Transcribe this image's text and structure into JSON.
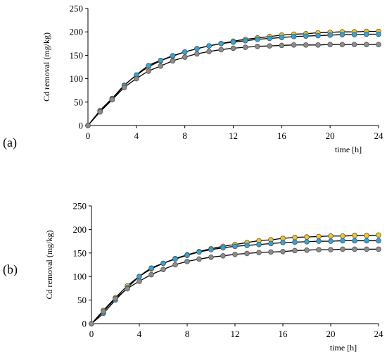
{
  "chart_data": [
    {
      "type": "scatter",
      "panel_label": "(a)",
      "xlabel": "time [h]",
      "ylabel": "Cd removal  (mg/kg)",
      "xlim": [
        0,
        24
      ],
      "ylim": [
        0,
        250
      ],
      "xticks": [
        0,
        4,
        8,
        12,
        16,
        20,
        24
      ],
      "yticks": [
        0,
        50,
        100,
        150,
        200,
        250
      ],
      "grid": false,
      "fit_curves": true,
      "x": [
        0,
        1,
        2,
        3,
        4,
        5,
        6,
        7,
        8,
        9,
        10,
        11,
        12,
        13,
        14,
        15,
        16,
        17,
        18,
        19,
        20,
        21,
        22,
        23,
        24
      ],
      "series": [
        {
          "color": "#F5C518",
          "values": [
            0,
            32,
            58,
            86,
            107,
            125,
            138,
            148,
            157,
            164,
            170,
            175,
            180,
            184,
            187,
            190,
            193,
            195,
            196,
            198,
            199,
            200,
            200,
            201,
            201
          ]
        },
        {
          "color": "#29A8E0",
          "values": [
            0,
            30,
            57,
            85,
            108,
            128,
            139,
            149,
            157,
            164,
            170,
            175,
            178,
            181,
            184,
            186,
            188,
            190,
            191,
            192,
            193,
            194,
            194,
            195,
            195
          ]
        },
        {
          "color": "#8C8C8C",
          "values": [
            0,
            29,
            55,
            81,
            100,
            116,
            127,
            138,
            146,
            153,
            158,
            162,
            165,
            167,
            169,
            170,
            171,
            172,
            172,
            172,
            173,
            173,
            173,
            173,
            173
          ]
        }
      ]
    },
    {
      "type": "scatter",
      "panel_label": "(b)",
      "xlabel": "time [h]",
      "ylabel": "Cd removal  (mg/kg)",
      "xlim": [
        0,
        24
      ],
      "ylim": [
        0,
        250
      ],
      "xticks": [
        0,
        4,
        8,
        12,
        16,
        20,
        24
      ],
      "yticks": [
        0,
        50,
        100,
        150,
        200,
        250
      ],
      "grid": false,
      "fit_curves": true,
      "x": [
        0,
        1,
        2,
        3,
        4,
        5,
        6,
        7,
        8,
        9,
        10,
        11,
        12,
        13,
        14,
        15,
        16,
        17,
        18,
        19,
        20,
        21,
        22,
        23,
        24
      ],
      "series": [
        {
          "color": "#F5C518",
          "values": [
            0,
            28,
            55,
            80,
            100,
            116,
            128,
            138,
            146,
            153,
            159,
            164,
            168,
            172,
            176,
            178,
            181,
            183,
            184,
            185,
            186,
            186,
            187,
            187,
            188
          ]
        },
        {
          "color": "#29A8E0",
          "values": [
            0,
            22,
            50,
            76,
            100,
            118,
            128,
            137,
            145,
            152,
            157,
            161,
            164,
            166,
            168,
            170,
            172,
            173,
            174,
            175,
            175,
            176,
            176,
            176,
            176
          ]
        },
        {
          "color": "#8C8C8C",
          "values": [
            0,
            26,
            53,
            74,
            90,
            104,
            115,
            125,
            132,
            137,
            141,
            144,
            147,
            149,
            151,
            152,
            153,
            155,
            156,
            157,
            157,
            158,
            158,
            158,
            158
          ]
        }
      ]
    }
  ]
}
